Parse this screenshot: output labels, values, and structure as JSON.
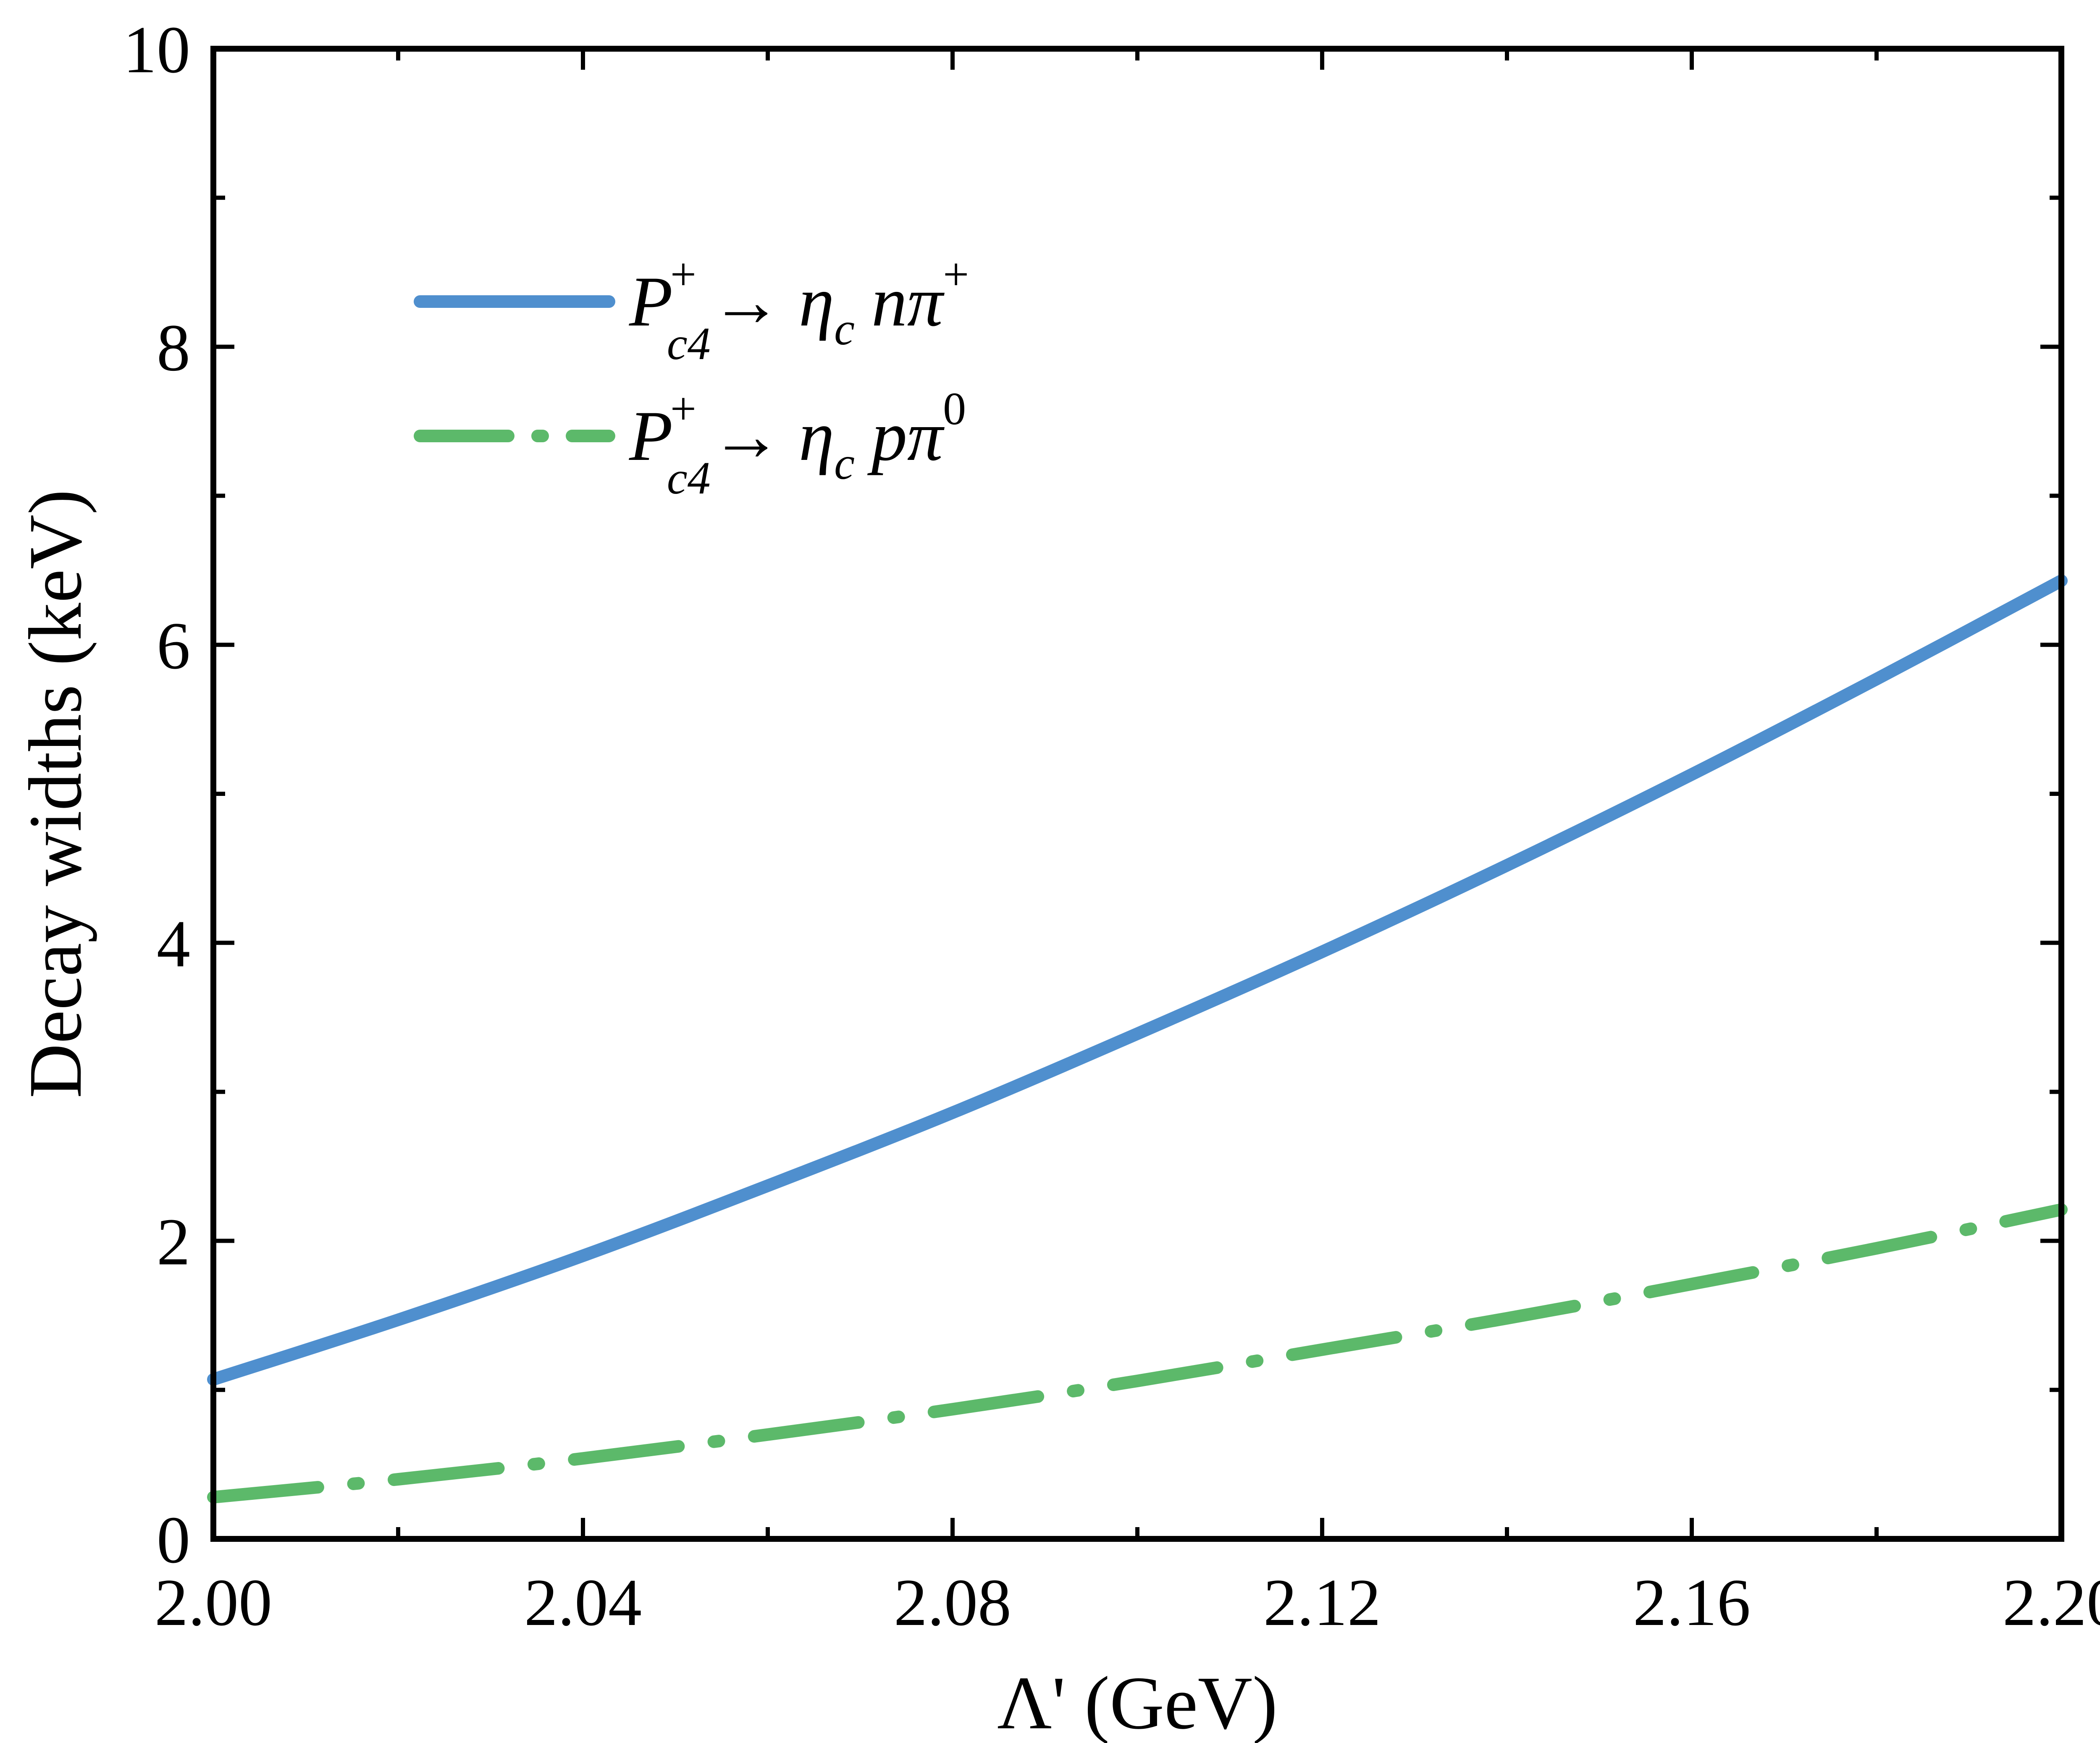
{
  "chart_data": {
    "type": "line",
    "title": "",
    "xlabel": "Λ' (GeV)",
    "ylabel": "Decay widths (keV)",
    "xlim": [
      2.0,
      2.2
    ],
    "ylim": [
      0,
      10
    ],
    "grid": false,
    "legend_position": "top-left",
    "x_ticks": [
      2.0,
      2.04,
      2.08,
      2.12,
      2.16,
      2.2
    ],
    "x_tick_labels": [
      "2.00",
      "2.04",
      "2.08",
      "2.12",
      "2.16",
      "2.20"
    ],
    "y_ticks": [
      0,
      2,
      4,
      6,
      8,
      10
    ],
    "y_tick_labels": [
      "0",
      "2",
      "4",
      "6",
      "8",
      "10"
    ],
    "series": [
      {
        "name": "P_c4^+ → η_c n π^+",
        "legend": {
          "P": "P",
          "sup": "+",
          "sub": "c4",
          "arrow": "→",
          "eta": "η",
          "eta_sub": "c",
          "particle": "n",
          "pi": "π",
          "pi_sup": "+"
        },
        "color": "#4f8fce",
        "style": "solid",
        "x": [
          2.0,
          2.02,
          2.04,
          2.06,
          2.08,
          2.1,
          2.12,
          2.14,
          2.16,
          2.18,
          2.2
        ],
        "values": [
          1.07,
          1.47,
          1.9,
          2.37,
          2.86,
          3.39,
          3.94,
          4.52,
          5.13,
          5.77,
          6.43
        ]
      },
      {
        "name": "P_c4^+ → η_c p π^0",
        "legend": {
          "P": "P",
          "sup": "+",
          "sub": "c4",
          "arrow": "→",
          "eta": "η",
          "eta_sub": "c",
          "particle": "p",
          "pi": "π",
          "pi_sup": "0"
        },
        "color": "#5cb96a",
        "style": "dash-dot",
        "x": [
          2.0,
          2.02,
          2.04,
          2.06,
          2.08,
          2.1,
          2.12,
          2.14,
          2.16,
          2.18,
          2.2
        ],
        "values": [
          0.28,
          0.4,
          0.54,
          0.7,
          0.87,
          1.06,
          1.27,
          1.48,
          1.71,
          1.95,
          2.21
        ]
      }
    ]
  }
}
